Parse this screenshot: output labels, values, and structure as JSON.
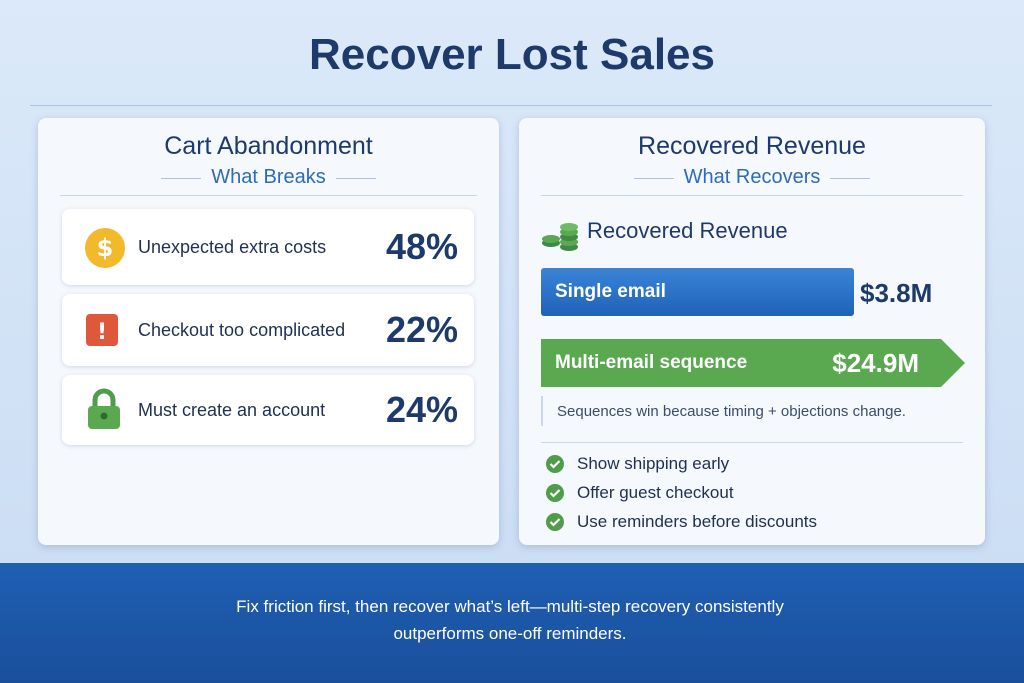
{
  "header": {
    "title": "Recover Lost Sales"
  },
  "left_panel": {
    "title": "Cart Abandonment",
    "subtitle": "What Breaks",
    "rows": [
      {
        "label": "Unexpected extra costs",
        "value": "48%"
      },
      {
        "label": "Checkout too complicated",
        "value": "22%"
      },
      {
        "label": "Must create an account",
        "value": "24%"
      }
    ]
  },
  "right_panel": {
    "title": "Recovered Revenue",
    "subtitle": "What Recovers",
    "section_title": "Recovered Revenue",
    "bars": [
      {
        "label": "Single email",
        "value": "$3.8M"
      },
      {
        "label": "Multi-email sequence",
        "value": "$24.9M"
      }
    ],
    "note": "Sequences win because timing + objections change.",
    "checklist": [
      "Show shipping early",
      "Offer guest checkout",
      "Use reminders before discounts"
    ]
  },
  "footer": {
    "text": "Fix friction first, then recover what’s left—multi-step recovery consistently outperforms one-off reminders."
  }
}
